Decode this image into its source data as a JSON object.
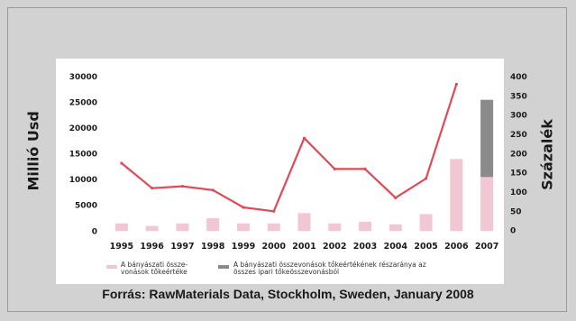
{
  "chart_data": {
    "type": "bar+line",
    "categories": [
      "1995",
      "1996",
      "1997",
      "1998",
      "1999",
      "2000",
      "2001",
      "2002",
      "2003",
      "2004",
      "2005",
      "2006",
      "2007"
    ],
    "left_axis": {
      "label": "Millió Usd",
      "ticks": [
        0,
        5000,
        10000,
        15000,
        20000,
        25000,
        30000
      ],
      "range": [
        -1000,
        30000
      ]
    },
    "right_axis": {
      "label": "Százalék",
      "ticks": [
        0,
        50,
        100,
        150,
        200,
        250,
        300,
        350,
        400
      ],
      "range": [
        -15,
        400
      ]
    },
    "series": [
      {
        "name": "A bányászati összevonások tőkeértéke",
        "type": "bar",
        "axis": "left",
        "color": "#f2c7d4",
        "values": [
          1500,
          1000,
          1500,
          2500,
          1500,
          1500,
          3500,
          1500,
          1800,
          1300,
          3300,
          14000,
          10500
        ]
      },
      {
        "name": "A bányászati összevonások tőkeértékének részaránya az összes ipari tőkeösszevonásból",
        "type": "bar",
        "axis": "left",
        "stacked_on": 0,
        "color": "#8a8a8a",
        "values": [
          0,
          0,
          0,
          0,
          0,
          0,
          0,
          0,
          0,
          0,
          0,
          0,
          15000
        ]
      },
      {
        "name": "",
        "type": "line",
        "axis": "right",
        "color": "#e04a55",
        "values": [
          175,
          110,
          115,
          105,
          60,
          50,
          240,
          160,
          160,
          85,
          135,
          380,
          null
        ]
      }
    ],
    "legend": [
      {
        "label": "A  bányászati össze-\nvonások tőkeértéke",
        "color": "#f2c7d4"
      },
      {
        "label": "A bányászati összevonások tőkeértékének részaránya az\nösszes ipari tőkeösszevonásból",
        "color": "#8a8a8a"
      }
    ],
    "source": "Forrás: RawMaterials Data, Stockholm, Sweden, January 2008"
  }
}
